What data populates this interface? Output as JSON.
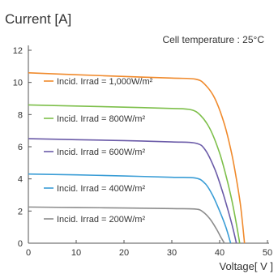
{
  "chart_data": {
    "type": "line",
    "title": "Current [A]",
    "annotation": "Cell temperature : 25°C",
    "xlabel": "Voltage[ V ]",
    "ylabel": "Current [A]",
    "xlim": [
      0,
      50
    ],
    "ylim": [
      0,
      12
    ],
    "x_ticks": [
      0,
      10,
      20,
      30,
      40,
      50
    ],
    "y_ticks": [
      0,
      2,
      4,
      6,
      8,
      10,
      12
    ],
    "grid": false,
    "legend_position": "inside-left",
    "series": [
      {
        "name": "Incid. Irrad = 1,000W/m²",
        "color": "#f08a2c",
        "points": [
          [
            0,
            10.6
          ],
          [
            10,
            10.48
          ],
          [
            20,
            10.37
          ],
          [
            30,
            10.27
          ],
          [
            35,
            10.2
          ],
          [
            37,
            9.85
          ],
          [
            39,
            9.0
          ],
          [
            41,
            7.4
          ],
          [
            42.5,
            5.6
          ],
          [
            43.5,
            4.0
          ],
          [
            44.3,
            2.5
          ],
          [
            44.8,
            1.2
          ],
          [
            45.2,
            0
          ]
        ]
      },
      {
        "name": "Incid. Irrad = 800W/m²",
        "color": "#7dbf4a",
        "points": [
          [
            0,
            8.6
          ],
          [
            10,
            8.53
          ],
          [
            20,
            8.46
          ],
          [
            30,
            8.38
          ],
          [
            34,
            8.3
          ],
          [
            36,
            7.95
          ],
          [
            38,
            7.1
          ],
          [
            40,
            5.6
          ],
          [
            41.5,
            4.0
          ],
          [
            42.6,
            2.6
          ],
          [
            43.5,
            1.2
          ],
          [
            44.2,
            0
          ]
        ]
      },
      {
        "name": "Incid. Irrad = 600W/m²",
        "color": "#6b5ba8",
        "points": [
          [
            0,
            6.5
          ],
          [
            10,
            6.44
          ],
          [
            20,
            6.38
          ],
          [
            30,
            6.3
          ],
          [
            35,
            6.22
          ],
          [
            37,
            5.8
          ],
          [
            39,
            4.6
          ],
          [
            40.5,
            3.3
          ],
          [
            41.8,
            2.0
          ],
          [
            42.8,
            0.9
          ],
          [
            43.5,
            0
          ]
        ]
      },
      {
        "name": "Incid. Irrad = 400W/m²",
        "color": "#3a9dd6",
        "points": [
          [
            0,
            4.3
          ],
          [
            10,
            4.25
          ],
          [
            20,
            4.18
          ],
          [
            30,
            4.1
          ],
          [
            35,
            4.05
          ],
          [
            37,
            3.7
          ],
          [
            38.5,
            3.0
          ],
          [
            40,
            2.0
          ],
          [
            41.3,
            1.0
          ],
          [
            42.3,
            0
          ]
        ]
      },
      {
        "name": "Incid. Irrad = 200W/m²",
        "color": "#8c8c8c",
        "points": [
          [
            0,
            2.25
          ],
          [
            10,
            2.22
          ],
          [
            20,
            2.19
          ],
          [
            30,
            2.15
          ],
          [
            35,
            2.12
          ],
          [
            36.5,
            1.95
          ],
          [
            38,
            1.5
          ],
          [
            39.3,
            0.9
          ],
          [
            40.3,
            0.35
          ],
          [
            41,
            0
          ]
        ]
      }
    ]
  }
}
